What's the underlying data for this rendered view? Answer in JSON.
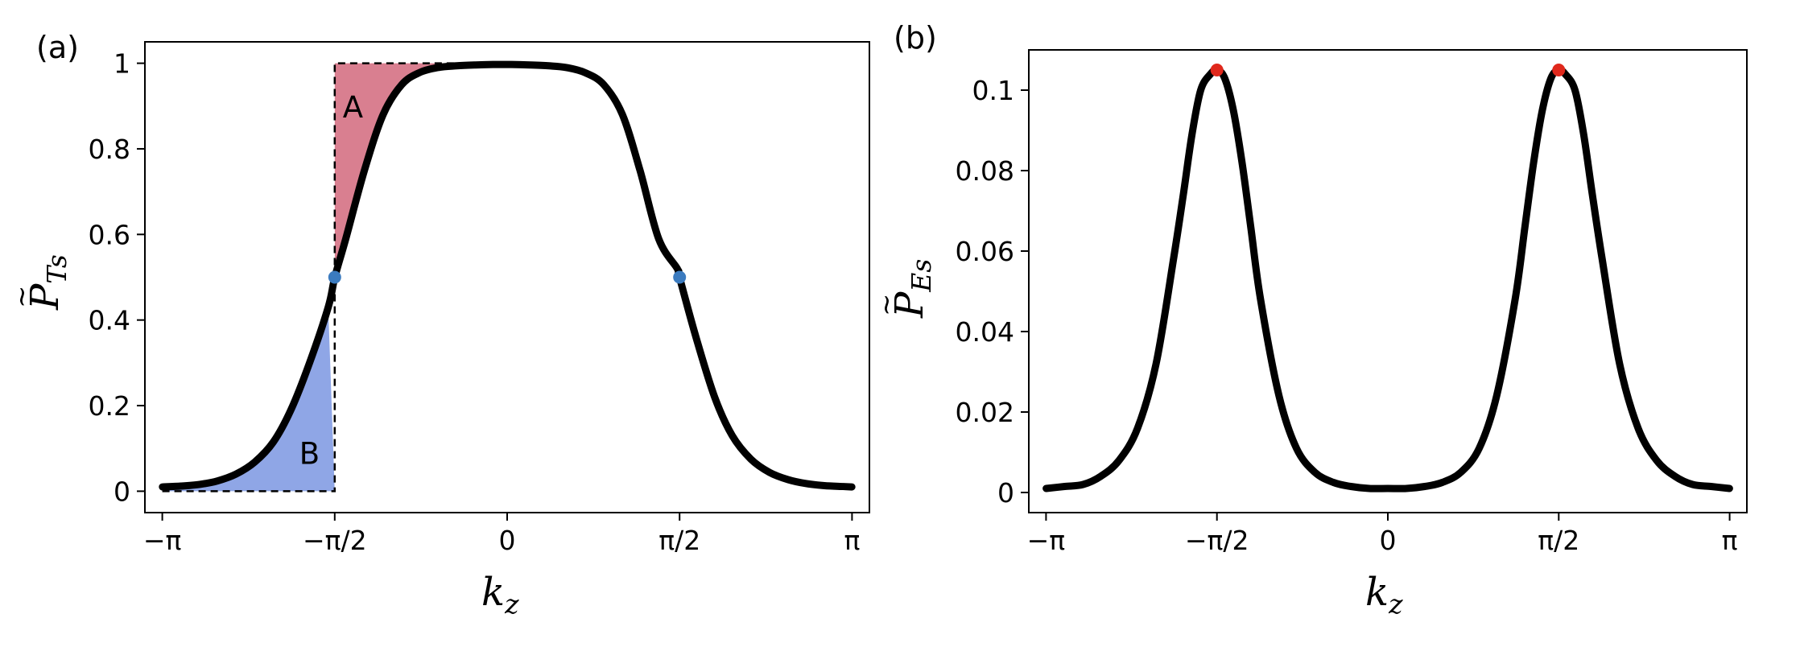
{
  "colors": {
    "curve": "#000000",
    "region_a": "#d97f90",
    "region_b": "#8fa6e6",
    "marker_a": "#3b7bbf",
    "marker_b": "#e0281c"
  },
  "chart_data": [
    {
      "type": "line",
      "panel_label": "(a)",
      "xlabel": "k",
      "xlabel_sub": "z",
      "ylabel": "P",
      "ylabel_sub": "Ts",
      "ylabel_accent": "~",
      "xlim": [
        -3.3,
        3.3
      ],
      "ylim": [
        -0.05,
        1.05
      ],
      "x_ticks": [
        {
          "value": -3.14159,
          "label": "−π"
        },
        {
          "value": -1.5708,
          "label": "−π/2"
        },
        {
          "value": 0,
          "label": "0"
        },
        {
          "value": 1.5708,
          "label": "π/2"
        },
        {
          "value": 3.14159,
          "label": "π"
        }
      ],
      "y_ticks": [
        {
          "value": 0,
          "label": "0"
        },
        {
          "value": 0.2,
          "label": "0.2"
        },
        {
          "value": 0.4,
          "label": "0.4"
        },
        {
          "value": 0.6,
          "label": "0.6"
        },
        {
          "value": 0.8,
          "label": "0.8"
        },
        {
          "value": 1,
          "label": "1"
        }
      ],
      "grid": false,
      "legend": "none",
      "series": [
        {
          "x": [
            -3.14,
            -2.97,
            -2.8,
            -2.64,
            -2.47,
            -2.3,
            -2.13,
            -1.97,
            -1.8,
            -1.63,
            -1.57,
            -1.47,
            -1.3,
            -1.13,
            -0.96,
            -0.8,
            -0.63,
            -0.46,
            -0.29,
            -0.13,
            0.04,
            0.21,
            0.38,
            0.54,
            0.71,
            0.88,
            1.05,
            1.21,
            1.38,
            1.55,
            1.57,
            1.72,
            1.89,
            2.05,
            2.22,
            2.39,
            2.56,
            2.72,
            2.89,
            3.06,
            3.14
          ],
          "values": [
            0.01,
            0.012,
            0.016,
            0.024,
            0.04,
            0.068,
            0.115,
            0.19,
            0.3,
            0.43,
            0.5,
            0.59,
            0.75,
            0.88,
            0.95,
            0.978,
            0.99,
            0.994,
            0.996,
            0.997,
            0.997,
            0.996,
            0.994,
            0.99,
            0.978,
            0.95,
            0.88,
            0.75,
            0.59,
            0.52,
            0.5,
            0.36,
            0.22,
            0.13,
            0.075,
            0.044,
            0.027,
            0.018,
            0.013,
            0.011,
            0.01
          ]
        }
      ],
      "markers": [
        {
          "x": -1.5708,
          "y": 0.5
        },
        {
          "x": 1.5708,
          "y": 0.5
        }
      ],
      "regions": [
        {
          "label": "A",
          "x_range": [
            -1.5708,
            0
          ],
          "y_top": 1
        },
        {
          "label": "B",
          "x_range": [
            -3.14159,
            -1.5708
          ],
          "y_bottom": 0
        }
      ]
    },
    {
      "type": "line",
      "panel_label": "(b)",
      "xlabel": "k",
      "xlabel_sub": "z",
      "ylabel": "P",
      "ylabel_sub": "Es",
      "ylabel_accent": "~",
      "xlim": [
        -3.3,
        3.3
      ],
      "ylim": [
        -0.005,
        0.11
      ],
      "x_ticks": [
        {
          "value": -3.14159,
          "label": "−π"
        },
        {
          "value": -1.5708,
          "label": "−π/2"
        },
        {
          "value": 0,
          "label": "0"
        },
        {
          "value": 1.5708,
          "label": "π/2"
        },
        {
          "value": 3.14159,
          "label": "π"
        }
      ],
      "y_ticks": [
        {
          "value": 0,
          "label": "0"
        },
        {
          "value": 0.02,
          "label": "0.02"
        },
        {
          "value": 0.04,
          "label": "0.04"
        },
        {
          "value": 0.06,
          "label": "0.06"
        },
        {
          "value": 0.08,
          "label": "0.08"
        },
        {
          "value": 0.1,
          "label": "0.1"
        }
      ],
      "grid": false,
      "legend": "none",
      "series": [
        {
          "x": [
            -3.14,
            -2.97,
            -2.8,
            -2.64,
            -2.47,
            -2.3,
            -2.13,
            -1.97,
            -1.88,
            -1.8,
            -1.72,
            -1.63,
            -1.57,
            -1.5,
            -1.42,
            -1.34,
            -1.26,
            -1.17,
            -1.0,
            -0.84,
            -0.67,
            -0.5,
            -0.34,
            -0.17,
            0,
            0.17,
            0.34,
            0.5,
            0.67,
            0.84,
            1.0,
            1.17,
            1.26,
            1.34,
            1.42,
            1.5,
            1.57,
            1.63,
            1.72,
            1.8,
            1.88,
            1.97,
            2.13,
            2.3,
            2.47,
            2.64,
            2.8,
            2.97,
            3.14
          ],
          "values": [
            0.001,
            0.0015,
            0.002,
            0.004,
            0.008,
            0.016,
            0.032,
            0.058,
            0.074,
            0.089,
            0.1,
            0.104,
            0.105,
            0.103,
            0.095,
            0.082,
            0.066,
            0.048,
            0.024,
            0.011,
            0.005,
            0.0025,
            0.0015,
            0.001,
            0.001,
            0.001,
            0.0015,
            0.0025,
            0.005,
            0.011,
            0.024,
            0.048,
            0.066,
            0.082,
            0.095,
            0.103,
            0.105,
            0.104,
            0.1,
            0.089,
            0.074,
            0.058,
            0.032,
            0.016,
            0.008,
            0.004,
            0.002,
            0.0015,
            0.001
          ]
        }
      ],
      "markers": [
        {
          "x": -1.5708,
          "y": 0.105
        },
        {
          "x": 1.5708,
          "y": 0.105
        }
      ]
    }
  ]
}
